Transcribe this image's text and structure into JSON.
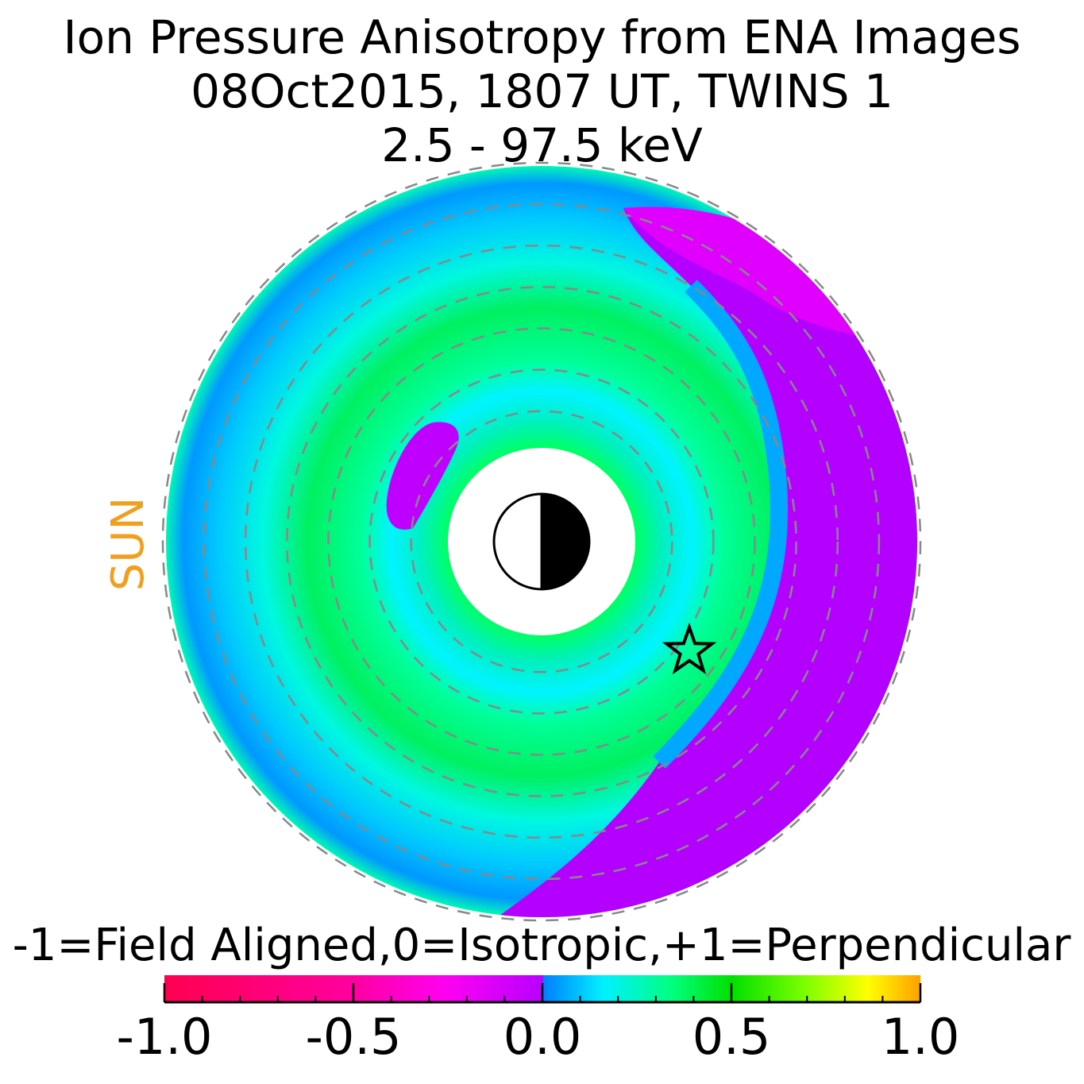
{
  "chart_data": {
    "type": "heatmap",
    "title": "Ion Pressure Anisotropy from  ENA Images",
    "subtitle_1": "08Oct2015, 1807 UT,  TWINS 1",
    "subtitle_2": "2.5 - 97.5 keV",
    "sun_label": "SUN",
    "colorbar": {
      "label": "-1=Field Aligned,0=Isotropic,+1=Perpendicular",
      "range": [
        -1.0,
        1.0
      ],
      "ticks": [
        -1.0,
        -0.5,
        0.0,
        0.5,
        1.0
      ],
      "tick_labels": [
        "-1.0",
        "-0.5",
        "0.0",
        "0.5",
        "1.0"
      ],
      "colors": [
        "#ff0050",
        "#ff00a0",
        "#ff00f0",
        "#b800ff",
        "#0080ff",
        "#00f0ff",
        "#00ff80",
        "#00e000",
        "#80ff00",
        "#ffff00",
        "#ffa000"
      ]
    },
    "polar_grid": {
      "ring_count": 8,
      "style": "dashed",
      "color": "#888888"
    },
    "sun_direction": "left",
    "marker": "star",
    "regions": [
      {
        "name": "outer-blue-band",
        "value": 0.15
      },
      {
        "name": "green-ring",
        "value": 0.5
      },
      {
        "name": "dusk-perpendicular-crescent",
        "value": 0.0
      },
      {
        "name": "small-magenta-patch",
        "value": -0.1
      }
    ]
  }
}
